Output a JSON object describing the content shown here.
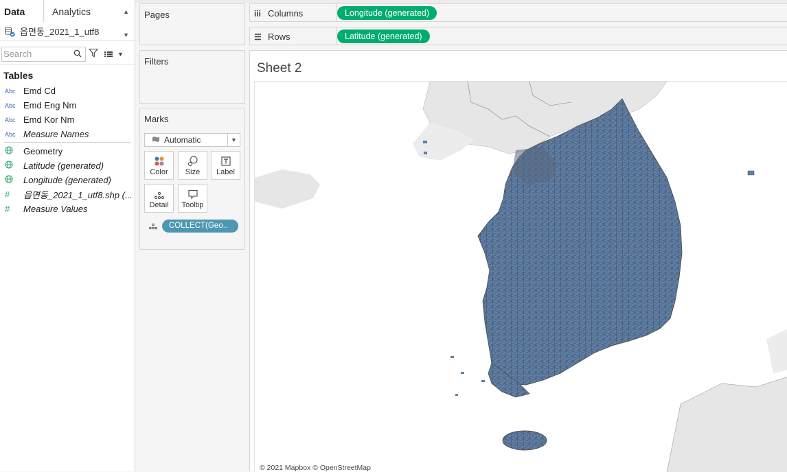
{
  "data_pane": {
    "tabs": {
      "data": "Data",
      "analytics": "Analytics"
    },
    "datasource": "읍면동_2021_1_utf8",
    "search_placeholder": "Search",
    "tables_title": "Tables",
    "fields": [
      {
        "icon": "Abc",
        "type": "string",
        "name": "Emd Cd",
        "italic": false
      },
      {
        "icon": "Abc",
        "type": "string",
        "name": "Emd Eng Nm",
        "italic": false
      },
      {
        "icon": "Abc",
        "type": "string",
        "name": "Emd Kor Nm",
        "italic": false
      },
      {
        "icon": "Abc",
        "type": "string",
        "name": "Measure Names",
        "italic": true
      },
      {
        "icon": "globe-icon",
        "type": "geo",
        "name": "Geometry",
        "italic": false
      },
      {
        "icon": "globe-icon",
        "type": "geo",
        "name": "Latitude (generated)",
        "italic": true
      },
      {
        "icon": "globe-icon",
        "type": "geo",
        "name": "Longitude (generated)",
        "italic": true
      },
      {
        "icon": "hash-icon",
        "type": "number",
        "name": "읍면동_2021_1_utf8.shp (...",
        "italic": true
      },
      {
        "icon": "hash-icon",
        "type": "number",
        "name": "Measure Values",
        "italic": true
      }
    ]
  },
  "cards": {
    "pages": "Pages",
    "filters": "Filters",
    "marks": "Marks",
    "mark_type": "Automatic",
    "mark_buttons": {
      "color": "Color",
      "size": "Size",
      "label": "Label",
      "detail": "Detail",
      "tooltip": "Tooltip"
    },
    "mark_field": "COLLECT(Geo.."
  },
  "shelves": {
    "columns_label": "Columns",
    "columns_pill": "Longitude (generated)",
    "rows_label": "Rows",
    "rows_pill": "Latitude (generated)"
  },
  "sheet": {
    "title": "Sheet 2",
    "attribution": "© 2021 Mapbox © OpenStreetMap"
  },
  "colors": {
    "pill_green": "#00ad6f",
    "pill_blue": "#4e97b2",
    "map_fill": "#5b80ad",
    "map_border": "#555555",
    "land_gray": "#e6e6e6"
  }
}
